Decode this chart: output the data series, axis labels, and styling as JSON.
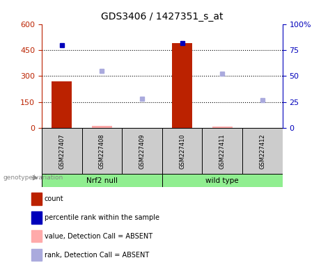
{
  "title": "GDS3406 / 1427351_s_at",
  "samples": [
    "GSM227407",
    "GSM227408",
    "GSM227409",
    "GSM227410",
    "GSM227411",
    "GSM227412"
  ],
  "bar_values": [
    270,
    15,
    2,
    490,
    10,
    2
  ],
  "bar_absent": [
    false,
    true,
    true,
    false,
    true,
    true
  ],
  "rank_values": [
    80,
    55,
    28,
    82,
    52,
    27
  ],
  "rank_absent": [
    false,
    true,
    true,
    false,
    true,
    true
  ],
  "rank_color_present": "#0000bb",
  "rank_color_absent": "#aaaadd",
  "bar_color_present": "#bb2200",
  "bar_color_absent": "#ffaaaa",
  "left_axis_color": "#bb2200",
  "right_axis_color": "#0000bb",
  "ylim_left": [
    0,
    600
  ],
  "ylim_right": [
    0,
    100
  ],
  "yticks_left": [
    0,
    150,
    300,
    450,
    600
  ],
  "ytick_labels_left": [
    "0",
    "150",
    "300",
    "450",
    "600"
  ],
  "yticks_right": [
    0,
    25,
    50,
    75,
    100
  ],
  "ytick_labels_right": [
    "0",
    "25",
    "50",
    "75",
    "100%"
  ],
  "grid_yticks": [
    150,
    300,
    450
  ],
  "group_ranges": [
    [
      0,
      2,
      "Nrf2 null"
    ],
    [
      3,
      5,
      "wild type"
    ]
  ],
  "group_color": "#90ee90",
  "legend_items": [
    {
      "label": "count",
      "color": "#bb2200"
    },
    {
      "label": "percentile rank within the sample",
      "color": "#0000bb"
    },
    {
      "label": "value, Detection Call = ABSENT",
      "color": "#ffaaaa"
    },
    {
      "label": "rank, Detection Call = ABSENT",
      "color": "#aaaadd"
    }
  ],
  "genotype_label": "genotype/variation"
}
